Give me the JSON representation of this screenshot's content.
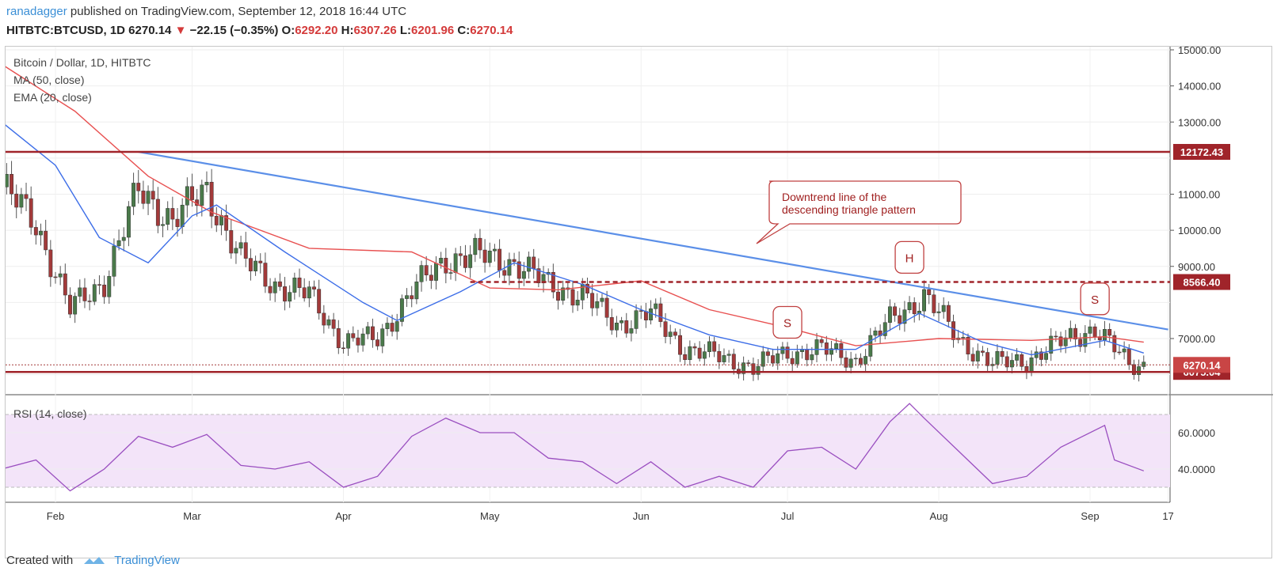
{
  "header": {
    "author": "ranadagger",
    "published_text": "published on TradingView.com, September 12, 2018 16:44 UTC",
    "symbol": "HITBTC:BTCUSD, 1D",
    "last": "6270.14",
    "change": "−22.15 (−0.35%)",
    "o_label": "O:",
    "o": "6292.20",
    "h_label": "H:",
    "h": "6307.26",
    "l_label": "L:",
    "l": "6201.96",
    "c_label": "C:",
    "c": "6270.14"
  },
  "legend": {
    "title": "Bitcoin / Dollar, 1D, HITBTC",
    "ma": "MA (50, close)",
    "ema": "EMA (20, close)",
    "rsi": "RSI (14, close)"
  },
  "footer": {
    "created_with": "Created with",
    "brand": "TradingView"
  },
  "colors": {
    "up": "#4a7a4a",
    "down": "#a33a3a",
    "ema": "#3d6ee8",
    "ma": "#e85050",
    "trendline": "#5b8fe8",
    "level": "#a0242a",
    "rsi_line": "#9a4fc0",
    "rsi_band": "#f3e4f9"
  },
  "chart_data": [
    {
      "type": "candlestick",
      "title": "Bitcoin / Dollar, 1D, HITBTC",
      "ylim": [
        5950,
        15150
      ],
      "y_ticks": [
        "15000.00",
        "14000.00",
        "13000.00",
        "11000.00",
        "10000.00",
        "9000.00",
        "7000.00"
      ],
      "x_ticks": [
        "Feb",
        "Mar",
        "Apr",
        "May",
        "Jun",
        "Jul",
        "Aug",
        "Sep",
        "17"
      ],
      "x_start": "2018-01-21",
      "x_end": "2018-09-17",
      "candles_weekly_close": [
        {
          "date": "2018-01-21",
          "close": 11200
        },
        {
          "date": "2018-01-28",
          "close": 10200
        },
        {
          "date": "2018-02-04",
          "close": 7800
        },
        {
          "date": "2018-02-11",
          "close": 8600
        },
        {
          "date": "2018-02-18",
          "close": 11100
        },
        {
          "date": "2018-02-25",
          "close": 10300
        },
        {
          "date": "2018-03-04",
          "close": 11100
        },
        {
          "date": "2018-03-11",
          "close": 9200
        },
        {
          "date": "2018-03-18",
          "close": 8500
        },
        {
          "date": "2018-03-25",
          "close": 8200
        },
        {
          "date": "2018-04-01",
          "close": 6900
        },
        {
          "date": "2018-04-08",
          "close": 7000
        },
        {
          "date": "2018-04-15",
          "close": 8300
        },
        {
          "date": "2018-04-22",
          "close": 9200
        },
        {
          "date": "2018-04-29",
          "close": 9300
        },
        {
          "date": "2018-05-06",
          "close": 9100
        },
        {
          "date": "2018-05-13",
          "close": 8500
        },
        {
          "date": "2018-05-20",
          "close": 8200
        },
        {
          "date": "2018-05-27",
          "close": 7400
        },
        {
          "date": "2018-06-03",
          "close": 7700
        },
        {
          "date": "2018-06-10",
          "close": 6700
        },
        {
          "date": "2018-06-17",
          "close": 6500
        },
        {
          "date": "2018-06-24",
          "close": 6200
        },
        {
          "date": "2018-07-01",
          "close": 6600
        },
        {
          "date": "2018-07-08",
          "close": 6700
        },
        {
          "date": "2018-07-15",
          "close": 6400
        },
        {
          "date": "2018-07-22",
          "close": 7500
        },
        {
          "date": "2018-07-29",
          "close": 8200
        },
        {
          "date": "2018-08-05",
          "close": 7000
        },
        {
          "date": "2018-08-12",
          "close": 6300
        },
        {
          "date": "2018-08-19",
          "close": 6400
        },
        {
          "date": "2018-08-26",
          "close": 6900
        },
        {
          "date": "2018-09-02",
          "close": 7300
        },
        {
          "date": "2018-09-09",
          "close": 6270
        }
      ],
      "ema20": [
        {
          "date": "2018-01-21",
          "value": 13000
        },
        {
          "date": "2018-02-01",
          "value": 11800
        },
        {
          "date": "2018-02-10",
          "value": 9800
        },
        {
          "date": "2018-02-20",
          "value": 9100
        },
        {
          "date": "2018-03-01",
          "value": 10400
        },
        {
          "date": "2018-03-06",
          "value": 10700
        },
        {
          "date": "2018-03-20",
          "value": 9400
        },
        {
          "date": "2018-04-05",
          "value": 8000
        },
        {
          "date": "2018-04-12",
          "value": 7500
        },
        {
          "date": "2018-04-25",
          "value": 8300
        },
        {
          "date": "2018-05-06",
          "value": 9100
        },
        {
          "date": "2018-05-20",
          "value": 8500
        },
        {
          "date": "2018-06-01",
          "value": 7800
        },
        {
          "date": "2018-06-15",
          "value": 7100
        },
        {
          "date": "2018-06-28",
          "value": 6700
        },
        {
          "date": "2018-07-15",
          "value": 6700
        },
        {
          "date": "2018-07-28",
          "value": 7700
        },
        {
          "date": "2018-08-10",
          "value": 6900
        },
        {
          "date": "2018-08-20",
          "value": 6550
        },
        {
          "date": "2018-09-04",
          "value": 6950
        },
        {
          "date": "2018-09-12",
          "value": 6600
        }
      ],
      "ma50": [
        {
          "date": "2018-01-21",
          "value": 14600
        },
        {
          "date": "2018-02-05",
          "value": 13300
        },
        {
          "date": "2018-02-20",
          "value": 11500
        },
        {
          "date": "2018-03-05",
          "value": 10500
        },
        {
          "date": "2018-03-25",
          "value": 9500
        },
        {
          "date": "2018-04-15",
          "value": 9400
        },
        {
          "date": "2018-05-01",
          "value": 8400
        },
        {
          "date": "2018-05-15",
          "value": 8350
        },
        {
          "date": "2018-06-01",
          "value": 8600
        },
        {
          "date": "2018-06-15",
          "value": 7800
        },
        {
          "date": "2018-07-01",
          "value": 7300
        },
        {
          "date": "2018-07-15",
          "value": 6800
        },
        {
          "date": "2018-08-01",
          "value": 7000
        },
        {
          "date": "2018-08-20",
          "value": 6950
        },
        {
          "date": "2018-09-04",
          "value": 7050
        },
        {
          "date": "2018-09-12",
          "value": 6900
        }
      ],
      "trendline": [
        {
          "date": "2018-02-18",
          "value": 12172
        },
        {
          "date": "2018-09-17",
          "value": 7250
        }
      ],
      "levels": [
        {
          "value": 12172.43,
          "label": "12172.43",
          "style": "solid"
        },
        {
          "value": 8566.4,
          "label": "8566.40",
          "style": "dashed"
        },
        {
          "value": 6075.04,
          "label": "6075.04",
          "style": "solid"
        }
      ],
      "last_price": {
        "value": 6270.14,
        "label": "6270.14"
      },
      "annotations": [
        {
          "kind": "callout",
          "text": [
            "Downtrend line of the",
            "descending triangle pattern"
          ]
        },
        {
          "kind": "marker",
          "text": "S",
          "date": "2018-07-01",
          "value": 7450
        },
        {
          "kind": "marker",
          "text": "H",
          "date": "2018-07-26",
          "value": 9250
        },
        {
          "kind": "marker",
          "text": "S",
          "date": "2018-09-02",
          "value": 8100
        }
      ]
    },
    {
      "type": "line",
      "title": "RSI (14, close)",
      "ylim": [
        25,
        78
      ],
      "y_ticks": [
        "60.0000",
        "40.0000"
      ],
      "band": [
        30,
        70
      ],
      "series": [
        {
          "values": [
            {
              "date": "2018-01-21",
              "value": 40
            },
            {
              "date": "2018-01-28",
              "value": 45
            },
            {
              "date": "2018-02-04",
              "value": 28
            },
            {
              "date": "2018-02-11",
              "value": 40
            },
            {
              "date": "2018-02-18",
              "value": 58
            },
            {
              "date": "2018-02-25",
              "value": 52
            },
            {
              "date": "2018-03-04",
              "value": 59
            },
            {
              "date": "2018-03-11",
              "value": 42
            },
            {
              "date": "2018-03-18",
              "value": 40
            },
            {
              "date": "2018-03-25",
              "value": 44
            },
            {
              "date": "2018-04-01",
              "value": 30
            },
            {
              "date": "2018-04-08",
              "value": 36
            },
            {
              "date": "2018-04-15",
              "value": 58
            },
            {
              "date": "2018-04-22",
              "value": 68
            },
            {
              "date": "2018-04-29",
              "value": 60
            },
            {
              "date": "2018-05-06",
              "value": 60
            },
            {
              "date": "2018-05-13",
              "value": 46
            },
            {
              "date": "2018-05-20",
              "value": 44
            },
            {
              "date": "2018-05-27",
              "value": 32
            },
            {
              "date": "2018-06-03",
              "value": 44
            },
            {
              "date": "2018-06-10",
              "value": 30
            },
            {
              "date": "2018-06-17",
              "value": 36
            },
            {
              "date": "2018-06-24",
              "value": 30
            },
            {
              "date": "2018-07-01",
              "value": 50
            },
            {
              "date": "2018-07-08",
              "value": 52
            },
            {
              "date": "2018-07-15",
              "value": 40
            },
            {
              "date": "2018-07-22",
              "value": 66
            },
            {
              "date": "2018-07-26",
              "value": 76
            },
            {
              "date": "2018-07-29",
              "value": 68
            },
            {
              "date": "2018-08-05",
              "value": 50
            },
            {
              "date": "2018-08-12",
              "value": 32
            },
            {
              "date": "2018-08-19",
              "value": 36
            },
            {
              "date": "2018-08-26",
              "value": 52
            },
            {
              "date": "2018-09-04",
              "value": 64
            },
            {
              "date": "2018-09-06",
              "value": 45
            },
            {
              "date": "2018-09-12",
              "value": 39
            }
          ]
        }
      ]
    }
  ]
}
